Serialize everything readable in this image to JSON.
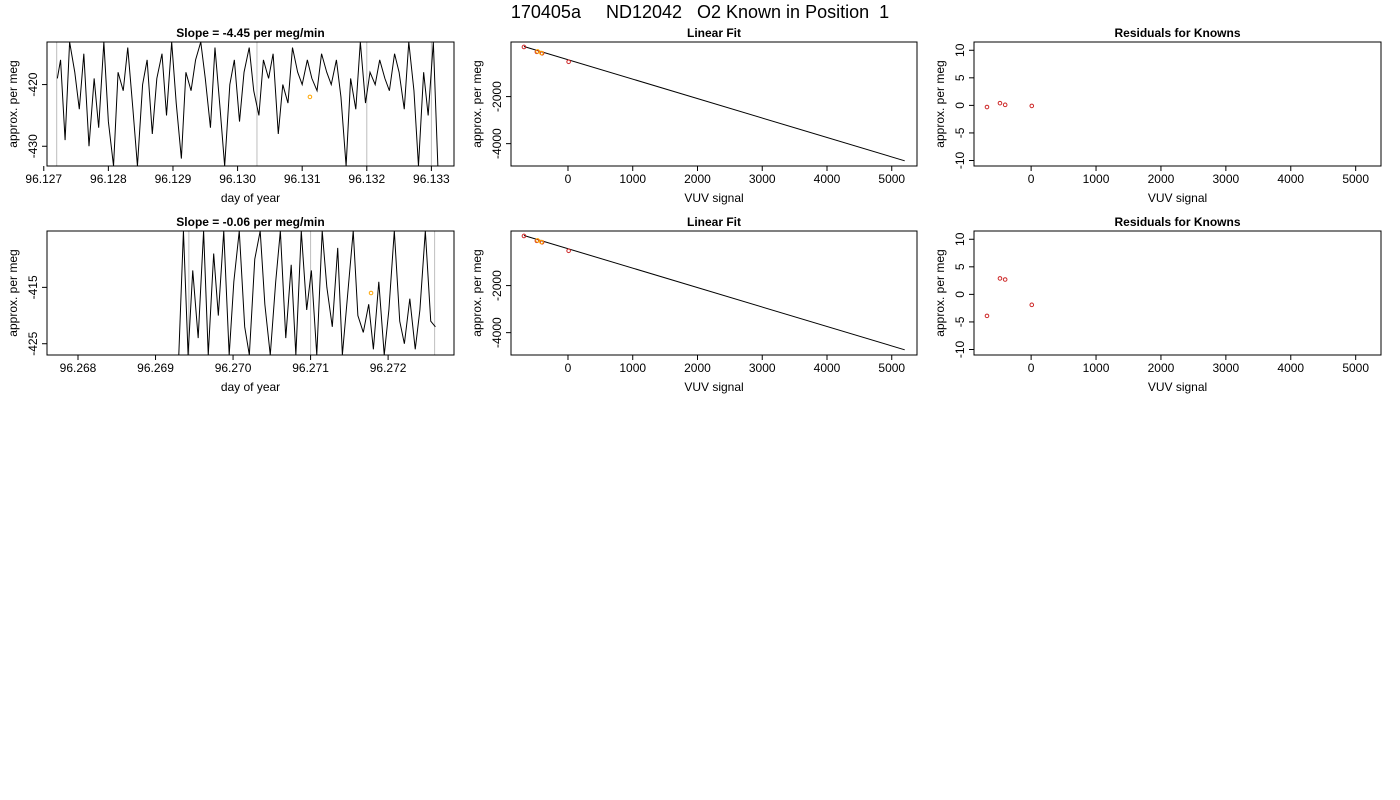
{
  "page_title": "170405a     ND12042   O2 Known in Position  1",
  "colors": {
    "trace": "#000000",
    "highlight": "#ffa500",
    "known": "#cd2626",
    "grid": "#bebebe",
    "axis": "#000000"
  },
  "chart_data": [
    {
      "id": "p1",
      "type": "line",
      "title": "Slope =  -4.45  per meg/min",
      "xlabel": "day of year",
      "ylabel": "approx. per meg",
      "xlim": [
        96.12705,
        96.13335
      ],
      "ylim": [
        -433.2,
        -413.1
      ],
      "xticks": [
        96.127,
        96.128,
        96.129,
        96.13,
        96.131,
        96.132,
        96.133
      ],
      "xtick_labels": [
        "96.127",
        "96.128",
        "96.129",
        "96.130",
        "96.131",
        "96.132",
        "96.133"
      ],
      "yticks": [
        -420,
        -430
      ],
      "ytick_labels": [
        "-420",
        "-430"
      ],
      "vlines": [
        96.1272,
        96.1303,
        96.132,
        96.133
      ],
      "highlight_points": [
        {
          "x": 96.13112,
          "y": -422.0
        }
      ],
      "series": [
        {
          "type": "line",
          "x": [
            96.12721,
            96.12726,
            96.12733,
            96.1274,
            96.12748,
            96.12755,
            96.12762,
            96.1277,
            96.12778,
            96.12785,
            96.12793,
            96.128,
            96.12808,
            96.12815,
            96.12823,
            96.1283,
            96.12838,
            96.12845,
            96.12853,
            96.1286,
            96.12868,
            96.12875,
            96.12883,
            96.1289,
            96.12898,
            96.12905,
            96.12913,
            96.1292,
            96.12928,
            96.12935,
            96.12943,
            96.1295,
            96.12958,
            96.12965,
            96.12973,
            96.1298,
            96.12988,
            96.12995,
            96.13003,
            96.1301,
            96.13018,
            96.13025,
            96.13033,
            96.1304,
            96.13048,
            96.13055,
            96.13063,
            96.1307,
            96.13078,
            96.13085,
            96.13093,
            96.131,
            96.13108,
            96.13115,
            96.13123,
            96.1313,
            96.13138,
            96.13145,
            96.13153,
            96.1316,
            96.13168,
            96.13175,
            96.13183,
            96.1319,
            96.13198,
            96.13205,
            96.13213,
            96.1322,
            96.13228,
            96.13235,
            96.13243,
            96.1325,
            96.13258,
            96.13265,
            96.13273,
            96.1328,
            96.13288,
            96.13295,
            96.13303,
            96.1331
          ],
          "y": [
            -419.0,
            -416.0,
            -429.0,
            -413.1,
            -418.0,
            -424.0,
            -415.0,
            -430.0,
            -419.0,
            -427.0,
            -413.1,
            -426.0,
            -433.2,
            -418.0,
            -421.0,
            -414.0,
            -424.0,
            -433.2,
            -420.0,
            -416.0,
            -428.0,
            -419.0,
            -415.0,
            -425.0,
            -413.1,
            -423.0,
            -432.0,
            -418.0,
            -421.0,
            -416.0,
            -413.1,
            -419.0,
            -427.0,
            -414.0,
            -424.0,
            -433.2,
            -420.0,
            -416.0,
            -426.0,
            -418.0,
            -414.0,
            -421.0,
            -425.0,
            -416.0,
            -419.0,
            -415.0,
            -428.0,
            -420.0,
            -423.0,
            -414.0,
            -418.0,
            -420.0,
            -416.0,
            -419.0,
            -421.0,
            -415.0,
            -418.0,
            -420.0,
            -416.0,
            -422.0,
            -433.2,
            -419.0,
            -424.0,
            -413.1,
            -423.0,
            -418.0,
            -420.0,
            -416.0,
            -419.0,
            -421.0,
            -415.0,
            -418.0,
            -424.0,
            -413.1,
            -421.0,
            -433.2,
            -418.0,
            -425.0,
            -413.1,
            -433.2
          ]
        }
      ]
    },
    {
      "id": "p2",
      "type": "scatter",
      "title": "Linear Fit",
      "xlabel": "VUV signal",
      "ylabel": "approx. per meg",
      "xlim": [
        -880,
        5390
      ],
      "ylim": [
        -4950,
        320
      ],
      "xticks": [
        0,
        1000,
        2000,
        3000,
        4000,
        5000
      ],
      "xtick_labels": [
        "0",
        "1000",
        "2000",
        "3000",
        "4000",
        "5000"
      ],
      "yticks": [
        -2000,
        -4000
      ],
      "ytick_labels": [
        "-2000",
        "-4000"
      ],
      "fit_line": {
        "x": [
          -680,
          5200
        ],
        "y": [
          130,
          -4730
        ]
      },
      "series": [
        {
          "name": "",
          "type": "points",
          "x": [
            -680,
            -480,
            -400,
            10
          ],
          "y": [
            110,
            -100,
            -160,
            -520
          ],
          "color": "known"
        },
        {
          "name": "",
          "type": "points",
          "x": [
            -470,
            -410
          ],
          "y": [
            -80,
            -150
          ],
          "color": "highlight"
        }
      ]
    },
    {
      "id": "p3",
      "type": "scatter",
      "title": "Residuals for Knowns",
      "xlabel": "VUV signal",
      "ylabel": "approx. per meg",
      "xlim": [
        -880,
        5390
      ],
      "ylim": [
        -11,
        11.5
      ],
      "xticks": [
        0,
        1000,
        2000,
        3000,
        4000,
        5000
      ],
      "xtick_labels": [
        "0",
        "1000",
        "2000",
        "3000",
        "4000",
        "5000"
      ],
      "yticks": [
        10,
        5,
        0,
        -5,
        -10
      ],
      "ytick_labels": [
        "10",
        "5",
        "0",
        "-5",
        "-10"
      ],
      "series": [
        {
          "name": "",
          "type": "points",
          "x": [
            -680,
            -480,
            -400,
            10
          ],
          "y": [
            -0.3,
            0.4,
            0.1,
            -0.1
          ],
          "color": "known"
        }
      ]
    },
    {
      "id": "p4",
      "type": "line",
      "title": "Slope =  -0.06  per meg/min",
      "xlabel": "day of year",
      "ylabel": "approx. per meg",
      "xlim": [
        96.2676,
        96.27285
      ],
      "ylim": [
        -427.0,
        -405.0
      ],
      "xticks": [
        96.268,
        96.269,
        96.27,
        96.271,
        96.272
      ],
      "xtick_labels": [
        "96.268",
        "96.269",
        "96.270",
        "96.271",
        "96.272"
      ],
      "yticks": [
        -415,
        -425
      ],
      "ytick_labels": [
        "-415",
        "-425"
      ],
      "vlines": [
        96.26943,
        96.271,
        96.2726
      ],
      "highlight_points": [
        {
          "x": 96.27178,
          "y": -416.0
        }
      ],
      "series": [
        {
          "type": "line",
          "x": [
            96.2676,
            96.2693,
            96.26936,
            96.26942,
            96.26948,
            96.26955,
            96.26962,
            96.26968,
            96.26975,
            96.26981,
            96.26988,
            96.26995,
            96.27001,
            96.27008,
            96.27015,
            96.27021,
            96.27028,
            96.27035,
            96.27041,
            96.27048,
            96.27055,
            96.27061,
            96.27068,
            96.27075,
            96.27081,
            96.27088,
            96.27095,
            96.27101,
            96.27108,
            96.27115,
            96.27121,
            96.27128,
            96.27135,
            96.27141,
            96.27148,
            96.27155,
            96.27161,
            96.27168,
            96.27175,
            96.27181,
            96.27188,
            96.27195,
            96.27201,
            96.27208,
            96.27215,
            96.27221,
            96.27228,
            96.27235,
            96.27241,
            96.27248,
            96.27255,
            96.27261
          ],
          "y": [
            -427.0,
            -427.0,
            -405.0,
            -427.0,
            -412.0,
            -424.0,
            -405.0,
            -427.0,
            -409.0,
            -420.0,
            -405.0,
            -427.0,
            -414.0,
            -405.0,
            -422.0,
            -427.0,
            -410.0,
            -405.0,
            -418.0,
            -427.0,
            -414.0,
            -405.0,
            -424.0,
            -411.0,
            -427.0,
            -405.0,
            -419.0,
            -412.0,
            -427.0,
            -405.0,
            -415.0,
            -422.0,
            -408.0,
            -427.0,
            -416.0,
            -405.0,
            -420.0,
            -423.0,
            -418.0,
            -426.0,
            -414.0,
            -427.0,
            -419.0,
            -405.0,
            -421.0,
            -425.0,
            -417.0,
            -426.0,
            -419.0,
            -405.0,
            -421.0,
            -422.0
          ]
        }
      ]
    },
    {
      "id": "p5",
      "type": "scatter",
      "title": "Linear Fit",
      "xlabel": "VUV signal",
      "ylabel": "approx. per meg",
      "xlim": [
        -880,
        5390
      ],
      "ylim": [
        -4950,
        320
      ],
      "xticks": [
        0,
        1000,
        2000,
        3000,
        4000,
        5000
      ],
      "xtick_labels": [
        "0",
        "1000",
        "2000",
        "3000",
        "4000",
        "5000"
      ],
      "yticks": [
        -2000,
        -4000
      ],
      "ytick_labels": [
        "-2000",
        "-4000"
      ],
      "fit_line": {
        "x": [
          -680,
          5200
        ],
        "y": [
          130,
          -4730
        ]
      },
      "series": [
        {
          "name": "",
          "type": "points",
          "x": [
            -680,
            -480,
            -400,
            10
          ],
          "y": [
            110,
            -100,
            -160,
            -520
          ],
          "color": "known"
        },
        {
          "name": "",
          "type": "points",
          "x": [
            -470,
            -410
          ],
          "y": [
            -80,
            -150
          ],
          "color": "highlight"
        }
      ]
    },
    {
      "id": "p6",
      "type": "scatter",
      "title": "Residuals for Knowns",
      "xlabel": "VUV signal",
      "ylabel": "approx. per meg",
      "xlim": [
        -880,
        5390
      ],
      "ylim": [
        -11,
        11.5
      ],
      "xticks": [
        0,
        1000,
        2000,
        3000,
        4000,
        5000
      ],
      "xtick_labels": [
        "0",
        "1000",
        "2000",
        "3000",
        "4000",
        "5000"
      ],
      "yticks": [
        10,
        5,
        0,
        -5,
        -10
      ],
      "ytick_labels": [
        "10",
        "5",
        "0",
        "-5",
        "-10"
      ],
      "series": [
        {
          "name": "",
          "type": "points",
          "x": [
            -680,
            -480,
            -400,
            10
          ],
          "y": [
            -3.9,
            2.9,
            2.7,
            -1.9
          ],
          "color": "known"
        }
      ]
    }
  ]
}
